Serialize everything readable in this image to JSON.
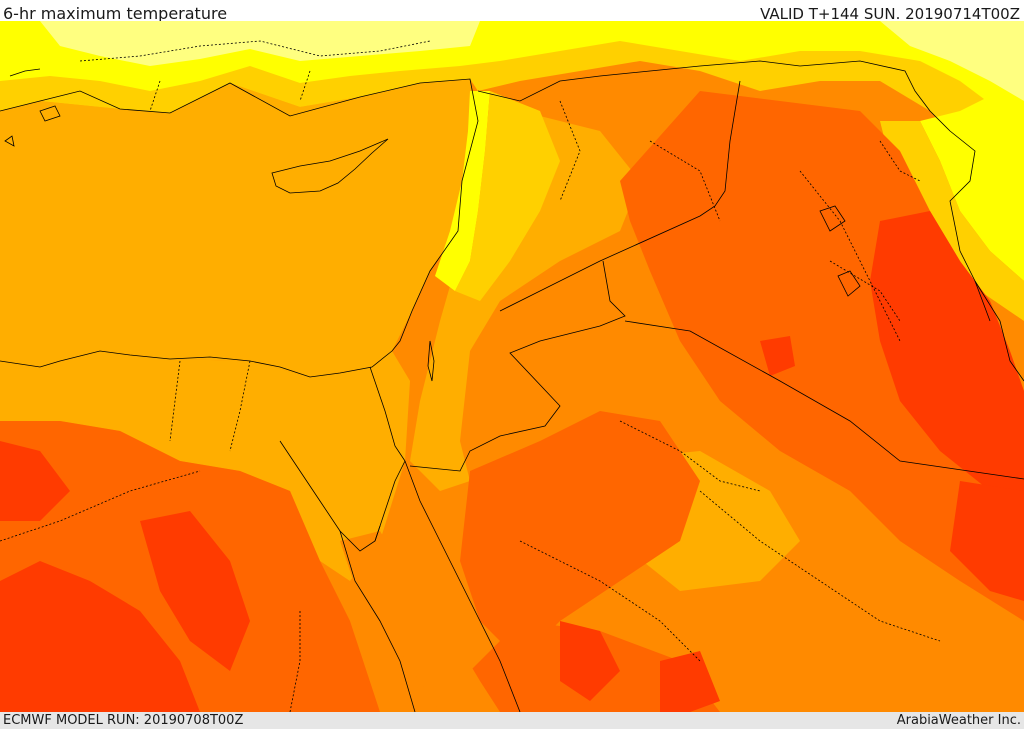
{
  "header": {
    "title": "6-hr maximum temperature",
    "valid": "VALID T+144 SUN. 20190714T00Z"
  },
  "footer": {
    "model_run": "ECMWF MODEL RUN: 20190708T00Z",
    "credit": "ArabiaWeather Inc."
  },
  "map": {
    "field": "6-hr maximum temperature",
    "palette": {
      "pale_yellow": "#ffff80",
      "yellow": "#ffff00",
      "gold": "#ffd000",
      "orange_light": "#ffae00",
      "orange": "#ff8a00",
      "orange_dark": "#ff6600",
      "red": "#ff3b00"
    },
    "borders_color": "#000000"
  }
}
